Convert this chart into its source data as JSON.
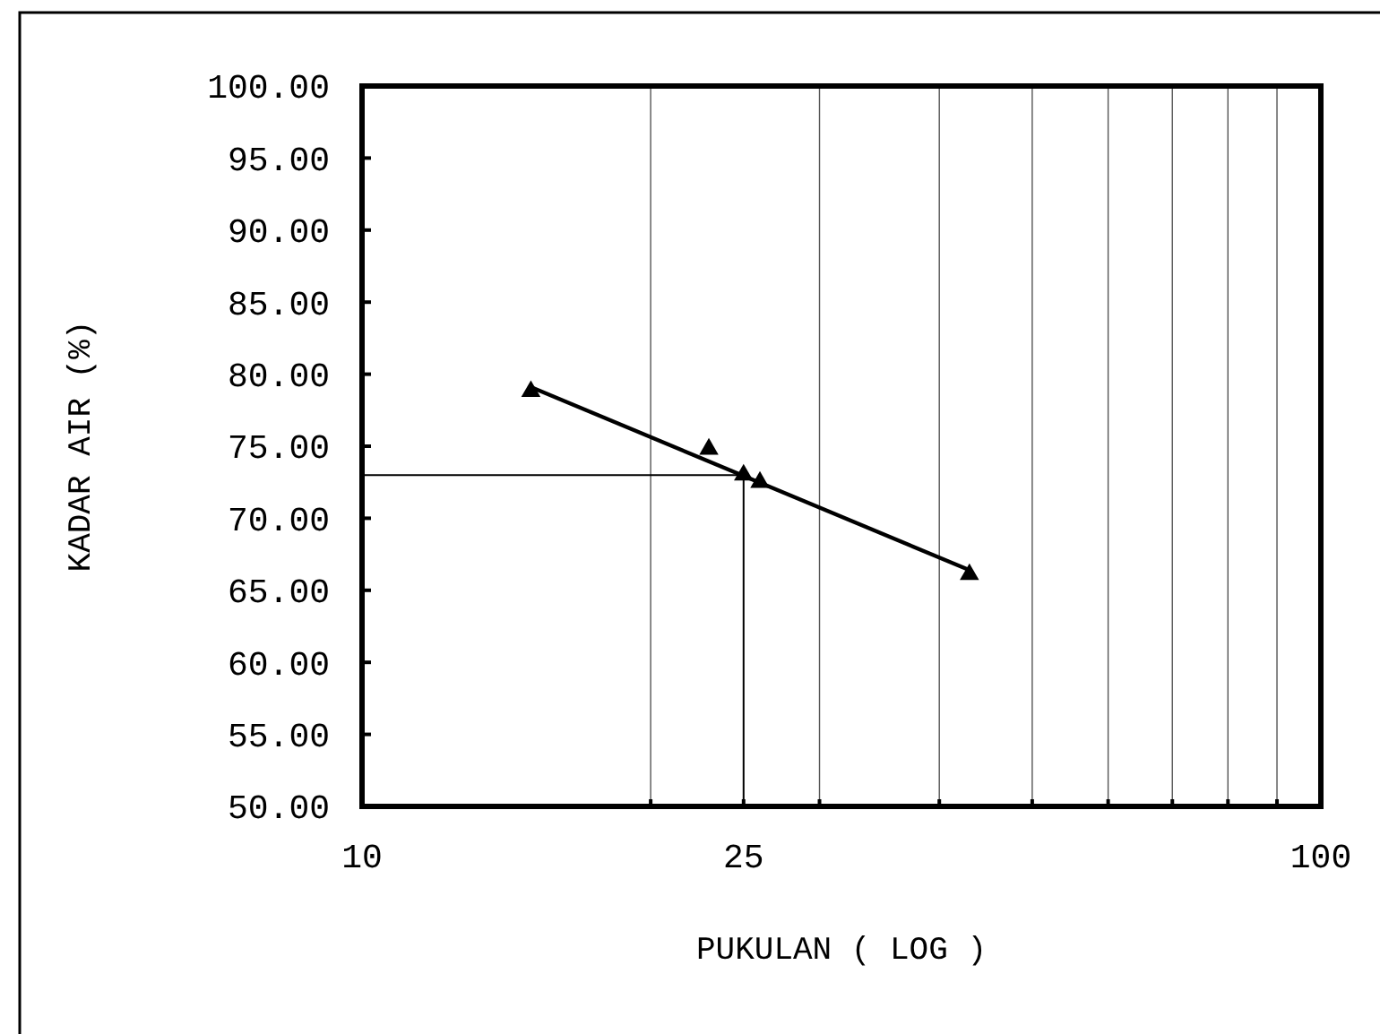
{
  "chart_data": {
    "type": "scatter",
    "xlabel": "PUKULAN ( LOG )",
    "ylabel": "KADAR AIR (%)",
    "log": "x",
    "xlim": [
      10,
      100
    ],
    "ylim": [
      50,
      100
    ],
    "xticks": [
      {
        "value": 10,
        "label": "10"
      },
      {
        "value": 20,
        "label": null
      },
      {
        "value": 25,
        "label": "25"
      },
      {
        "value": 30,
        "label": null
      },
      {
        "value": 40,
        "label": null
      },
      {
        "value": 50,
        "label": null
      },
      {
        "value": 60,
        "label": null
      },
      {
        "value": 70,
        "label": null
      },
      {
        "value": 80,
        "label": null
      },
      {
        "value": 90,
        "label": null
      },
      {
        "value": 100,
        "label": "100"
      }
    ],
    "yticks": [
      {
        "value": 50,
        "label": "50.00"
      },
      {
        "value": 55,
        "label": "55.00"
      },
      {
        "value": 60,
        "label": "60.00"
      },
      {
        "value": 65,
        "label": "65.00"
      },
      {
        "value": 70,
        "label": "70.00"
      },
      {
        "value": 75,
        "label": "75.00"
      },
      {
        "value": 80,
        "label": "80.00"
      },
      {
        "value": 85,
        "label": "85.00"
      },
      {
        "value": 90,
        "label": "90.00"
      },
      {
        "value": 95,
        "label": "95.00"
      },
      {
        "value": 100,
        "label": "100.00"
      }
    ],
    "grid": "x",
    "series": [
      {
        "type": "line",
        "color": "#000000",
        "x": [
          15,
          43
        ],
        "values": [
          79.1,
          66.4
        ],
        "marker": "none",
        "line_style": "solid"
      },
      {
        "color": "#000000",
        "x": [
          15,
          23,
          25,
          26,
          43
        ],
        "values": [
          78.8,
          74.8,
          73.0,
          72.5,
          66.1
        ],
        "marker": "triangle"
      },
      {
        "type": "line",
        "color": "#000000",
        "x": [
          10,
          25,
          25
        ],
        "values": [
          73,
          73,
          50
        ],
        "marker": "none",
        "line_style": "solid"
      }
    ]
  }
}
